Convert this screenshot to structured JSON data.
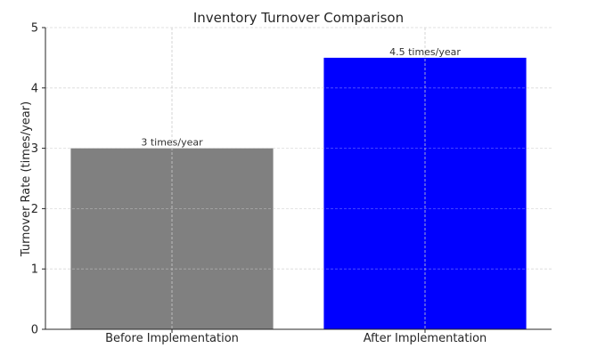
{
  "chart_data": {
    "type": "bar",
    "title": "Inventory Turnover Comparison",
    "xlabel": "",
    "ylabel": "Turnover Rate (times/year)",
    "categories": [
      "Before Implementation",
      "After Implementation"
    ],
    "values": [
      3,
      4.5
    ],
    "data_labels": [
      "3 times/year",
      "4.5 times/year"
    ],
    "bar_colors": [
      "#808080",
      "#0000ff"
    ],
    "ylim": [
      0,
      5
    ],
    "yticks": [
      "0",
      "1",
      "2",
      "3",
      "4",
      "5"
    ],
    "grid": true
  }
}
